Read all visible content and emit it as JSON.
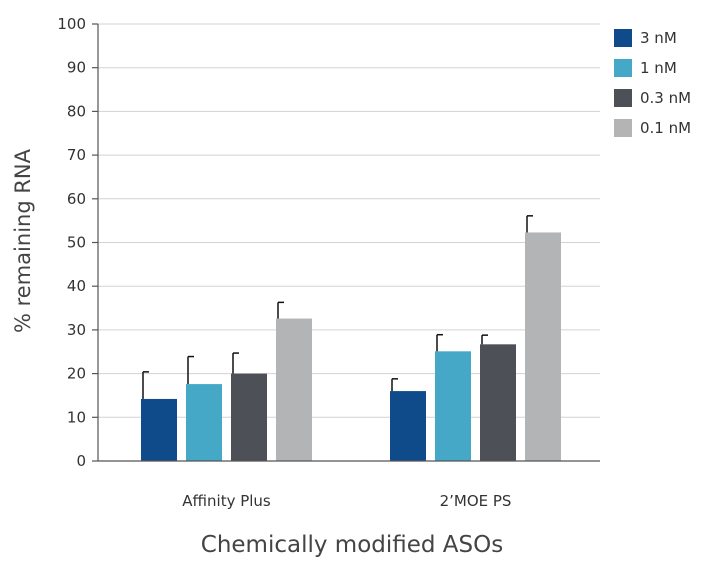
{
  "chart_data": {
    "type": "bar",
    "title": "",
    "xlabel": "Chemically modified ASOs",
    "ylabel": "% remaining RNA",
    "ylim": [
      0,
      100
    ],
    "yticks": [
      0,
      10,
      20,
      30,
      40,
      50,
      60,
      70,
      80,
      90,
      100
    ],
    "grid": true,
    "legend_position": "top-right",
    "categories": [
      "Affinity Plus",
      "2’MOE PS"
    ],
    "series": [
      {
        "name": "3 nM",
        "color": "#0f4b8a",
        "values": [
          14.2,
          16.0
        ],
        "errors": [
          6.2,
          2.8
        ]
      },
      {
        "name": "1 nM",
        "color": "#45a8c6",
        "values": [
          17.6,
          25.1
        ],
        "errors": [
          6.3,
          3.8
        ]
      },
      {
        "name": "0.3 nM",
        "color": "#4d5157",
        "values": [
          20.0,
          26.7
        ],
        "errors": [
          4.7,
          2.1
        ]
      },
      {
        "name": "0.1 nM",
        "color": "#b3b4b5",
        "values": [
          32.6,
          52.3
        ],
        "errors": [
          3.7,
          3.8
        ]
      }
    ]
  }
}
